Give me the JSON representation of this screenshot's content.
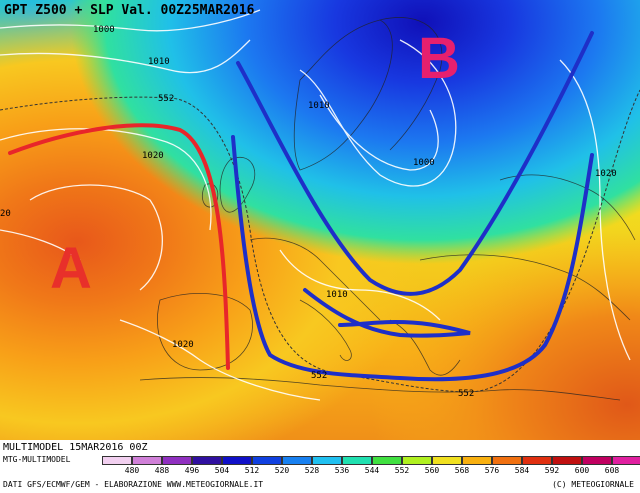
{
  "header": {
    "title": "GPT Z500 + SLP Val. 00Z25MAR2016"
  },
  "map": {
    "pressure_labels": [
      "A",
      "B"
    ],
    "slp_isobar_labels": [
      "1000",
      "1010",
      "1020",
      "1010",
      "1000",
      "1020",
      "1010",
      "1020",
      "20"
    ],
    "gpt_contour_labels": [
      "552",
      "552",
      "552"
    ],
    "colors": {
      "high_pressure_letter": "#e8302a",
      "low_pressure_letter": "#e6206e",
      "ridge_axis_line": "#e8262a",
      "trough_axis_line": "#1e2fc8"
    }
  },
  "footer": {
    "model_run": "MULTIMODEL 15MAR2016 00Z",
    "model_name": "MTG-MULTIMODEL",
    "source": "DATI GFS/ECMWF/GEM - ELABORAZIONE WWW.METEOGIORNALE.IT",
    "copyright": "(C) METEOGIORNALE"
  },
  "legend": {
    "ticks": [
      "480",
      "488",
      "496",
      "504",
      "512",
      "520",
      "528",
      "536",
      "544",
      "552",
      "560",
      "568",
      "576",
      "584",
      "592",
      "600",
      "608"
    ],
    "colors": [
      "#f2d0f0",
      "#d080d8",
      "#9030c0",
      "#3010a0",
      "#1010c8",
      "#1040e0",
      "#1880f0",
      "#20c0f0",
      "#20e0b0",
      "#40e040",
      "#b0f020",
      "#f0e020",
      "#f8b010",
      "#f07010",
      "#e03010",
      "#c01010",
      "#c00060",
      "#e020a0"
    ]
  }
}
